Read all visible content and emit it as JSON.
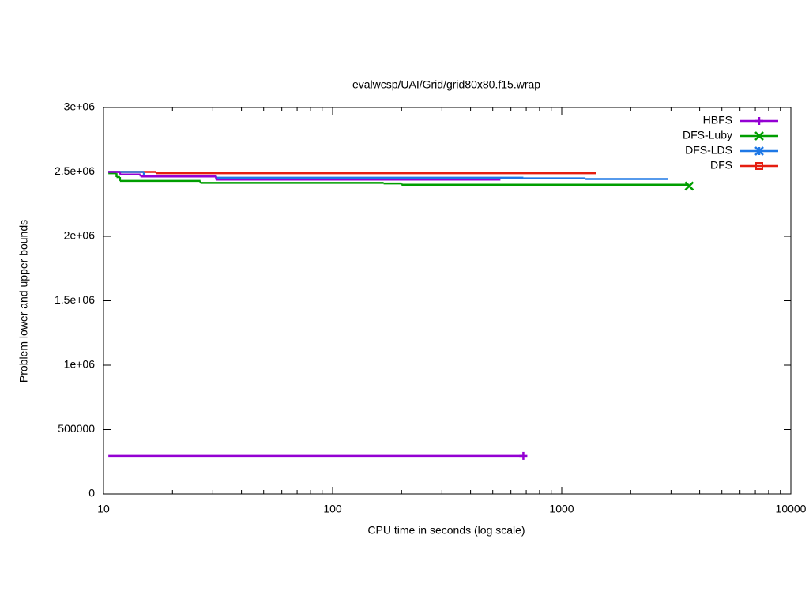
{
  "chart_data": {
    "type": "step",
    "title": "evalwcsp/UAI/Grid/grid80x80.f15.wrap",
    "x_label": "CPU time in seconds (log scale)",
    "y_label": "Problem lower and upper bounds",
    "x_log_scale": true,
    "xlim": [
      10,
      10000
    ],
    "xticks": [
      10,
      100,
      1000,
      10000
    ],
    "ylim": [
      0,
      3000000
    ],
    "yticks": [
      0,
      500000,
      {
        "value": 1000000,
        "label": "1e+06"
      },
      {
        "value": 1500000,
        "label": "1.5e+06"
      },
      {
        "value": 2000000,
        "label": "2e+06"
      },
      {
        "value": 2500000,
        "label": "2.5e+06"
      },
      {
        "value": 3000000,
        "label": "3e+06"
      }
    ],
    "legend_position": "top-right",
    "series": [
      {
        "name": "HBFS",
        "color": "#9400d3",
        "marker": "plus",
        "lines": [
          {
            "x": [
              10.5,
              11.8,
              14.5,
              31,
              540
            ],
            "values": [
              2500000,
              2480000,
              2465000,
              2440000,
              2440000
            ]
          },
          {
            "x": [
              10.5,
              680
            ],
            "values": [
              295000,
              295000
            ],
            "end_marker": true
          }
        ]
      },
      {
        "name": "DFS-Luby",
        "color": "#009e00",
        "marker": "cross",
        "lines": [
          {
            "x": [
              10.5,
              11.4,
              11.8,
              26.5,
              167,
              200,
              3600
            ],
            "values": [
              2490000,
              2460000,
              2430000,
              2415000,
              2410000,
              2400000,
              2390000
            ],
            "end_marker": true
          }
        ]
      },
      {
        "name": "DFS-LDS",
        "color": "#1e78e6",
        "marker": "star",
        "lines": [
          {
            "x": [
              10.5,
              15,
              31,
              680,
              1270,
              2900
            ],
            "values": [
              2500000,
              2470000,
              2455000,
              2450000,
              2445000,
              2445000
            ]
          }
        ]
      },
      {
        "name": "DFS",
        "color": "#e51e10",
        "marker": "square",
        "lines": [
          {
            "x": [
              10.5,
              17,
              1410
            ],
            "values": [
              2500000,
              2490000,
              2490000
            ]
          }
        ]
      }
    ]
  }
}
